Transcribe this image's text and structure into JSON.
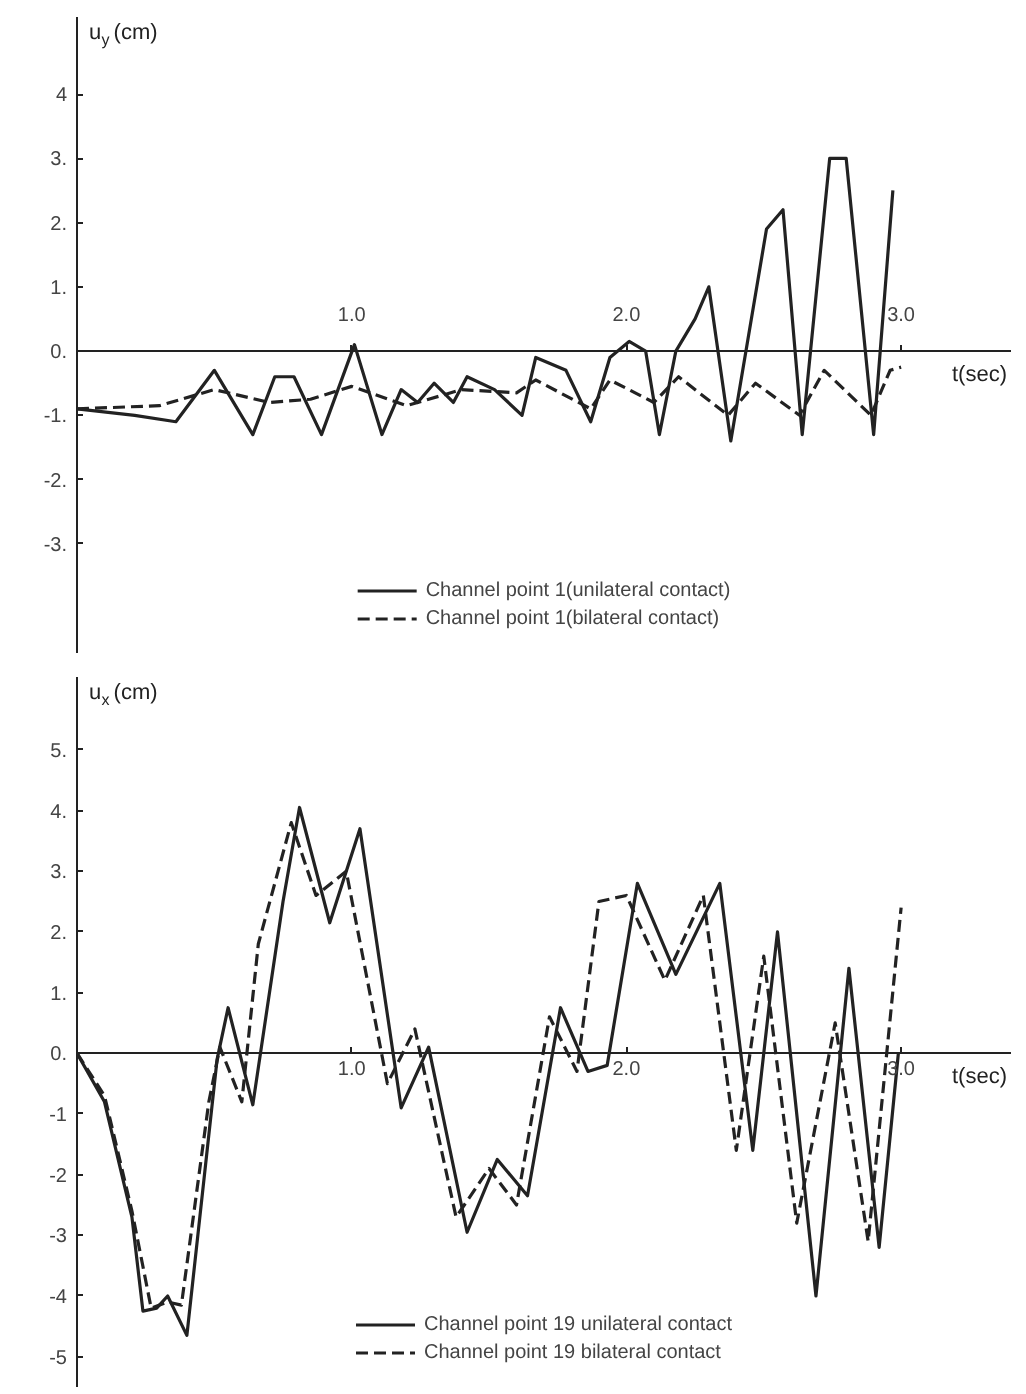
{
  "chart_data": [
    {
      "type": "line",
      "xlabel": "t(sec)",
      "ylabel": "u$_{y}$(cm)",
      "xlim": [
        0,
        3.4
      ],
      "ylim": [
        -4.7,
        5.2
      ],
      "xticks": [
        {
          "value": 1,
          "label": "1.0"
        },
        {
          "value": 2,
          "label": "2.0"
        },
        {
          "value": 3,
          "label": "3.0"
        }
      ],
      "yticks": [
        {
          "value": 4,
          "label": "4"
        },
        {
          "value": 3,
          "label": "3."
        },
        {
          "value": 2,
          "label": "2."
        },
        {
          "value": 1,
          "label": "1."
        },
        {
          "value": 0,
          "label": "0."
        },
        {
          "value": -1,
          "label": "-1."
        },
        {
          "value": -2,
          "label": "-2."
        },
        {
          "value": -3,
          "label": "-3."
        }
      ],
      "grid": false,
      "legend": "bottom",
      "marker": "none",
      "series": [
        {
          "name": "Channel point 1(unilateral contact)",
          "color": "#222222",
          "line_style": "solid",
          "x": [
            0,
            0.21,
            0.36,
            0.5,
            0.64,
            0.72,
            0.79,
            0.89,
            0.95,
            1.01,
            1.11,
            1.18,
            1.24,
            1.3,
            1.37,
            1.42,
            1.52,
            1.62,
            1.67,
            1.78,
            1.87,
            1.94,
            2.01,
            2.07,
            2.12,
            2.18,
            2.25,
            2.3,
            2.38,
            2.51,
            2.57,
            2.64,
            2.74,
            2.8,
            2.9,
            2.97
          ],
          "values": [
            -0.9,
            -1.0,
            -1.1,
            -0.3,
            -1.3,
            -0.4,
            -0.4,
            -1.3,
            -0.6,
            0.1,
            -1.3,
            -0.6,
            -0.8,
            -0.5,
            -0.8,
            -0.4,
            -0.6,
            -1.0,
            -0.1,
            -0.3,
            -1.1,
            -0.1,
            0.15,
            0.0,
            -1.3,
            0.0,
            0.5,
            1.0,
            -1.4,
            1.9,
            2.2,
            -1.3,
            3.0,
            3.0,
            -1.3,
            2.5
          ]
        },
        {
          "name": "Channel point 1(bilateral contact)",
          "color": "#222222",
          "line_style": "dashed",
          "x": [
            0,
            0.3,
            0.5,
            0.7,
            0.85,
            1.0,
            1.2,
            1.4,
            1.6,
            1.67,
            1.87,
            1.94,
            2.1,
            2.19,
            2.37,
            2.47,
            2.63,
            2.72,
            2.89,
            2.96,
            3.0
          ],
          "values": [
            -0.9,
            -0.85,
            -0.6,
            -0.8,
            -0.75,
            -0.55,
            -0.85,
            -0.6,
            -0.65,
            -0.45,
            -0.9,
            -0.45,
            -0.8,
            -0.4,
            -1.0,
            -0.5,
            -1.0,
            -0.3,
            -1.0,
            -0.3,
            -0.25
          ]
        }
      ]
    },
    {
      "type": "line",
      "xlabel": "t(sec)",
      "ylabel": "u$_{x}$(cm)",
      "xlim": [
        0,
        3.4
      ],
      "ylim": [
        -5.5,
        6.2
      ],
      "xticks": [
        {
          "value": 1,
          "label": "1.0"
        },
        {
          "value": 2,
          "label": "2.0"
        },
        {
          "value": 3,
          "label": "3.0"
        }
      ],
      "yticks": [
        {
          "value": 5,
          "label": "5."
        },
        {
          "value": 4,
          "label": "4."
        },
        {
          "value": 3,
          "label": "3."
        },
        {
          "value": 2,
          "label": "2."
        },
        {
          "value": 1,
          "label": "1."
        },
        {
          "value": 0,
          "label": "0."
        },
        -1,
        -2,
        -3,
        -4,
        -5
      ],
      "grid": false,
      "legend": "bottom",
      "marker": "none",
      "series": [
        {
          "name": "Channel point 19 unilateral contact",
          "color": "#222222",
          "line_style": "solid",
          "x": [
            0,
            0.1,
            0.2,
            0.24,
            0.29,
            0.33,
            0.4,
            0.51,
            0.55,
            0.64,
            0.75,
            0.81,
            0.92,
            1.03,
            1.18,
            1.28,
            1.42,
            1.53,
            1.64,
            1.76,
            1.86,
            1.93,
            2.04,
            2.18,
            2.34,
            2.46,
            2.55,
            2.69,
            2.81,
            2.92,
            2.99
          ],
          "values": [
            0,
            -0.8,
            -2.7,
            -4.25,
            -4.2,
            -4.0,
            -4.65,
            -0.1,
            0.75,
            -0.85,
            2.5,
            4.05,
            2.15,
            3.7,
            -0.9,
            0.1,
            -2.95,
            -1.75,
            -2.35,
            0.75,
            -0.3,
            -0.2,
            2.8,
            1.3,
            2.8,
            -1.6,
            2.0,
            -4.0,
            1.4,
            -3.2,
            0.0
          ]
        },
        {
          "name": "Channel point 19 bilateral contact",
          "color": "#222222",
          "line_style": "dashed",
          "x": [
            0,
            0.1,
            0.2,
            0.27,
            0.33,
            0.38,
            0.48,
            0.52,
            0.6,
            0.66,
            0.78,
            0.87,
            0.98,
            1.13,
            1.23,
            1.38,
            1.5,
            1.6,
            1.72,
            1.82,
            1.9,
            2.0,
            2.14,
            2.28,
            2.4,
            2.5,
            2.62,
            2.76,
            2.88,
            3.0
          ],
          "values": [
            0,
            -0.7,
            -2.6,
            -4.2,
            -4.1,
            -4.15,
            -0.8,
            0.1,
            -0.8,
            1.8,
            3.8,
            2.6,
            3.0,
            -0.5,
            0.4,
            -2.7,
            -1.9,
            -2.5,
            0.6,
            -0.3,
            2.5,
            2.6,
            1.2,
            2.6,
            -1.6,
            1.6,
            -2.8,
            0.5,
            -3.1,
            2.4
          ]
        }
      ]
    }
  ]
}
